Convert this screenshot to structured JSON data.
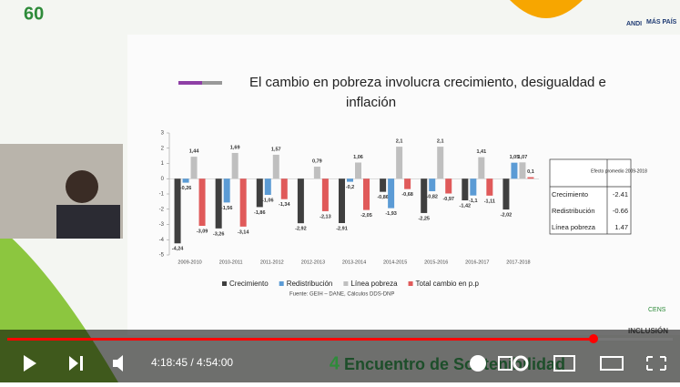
{
  "brand": {
    "anniversary": "60",
    "andi": "ANDI",
    "mas_pais": "MÁS PAÍS",
    "cens": "CENS",
    "inclusion": "INCLUSIÓN"
  },
  "slide": {
    "title": "El cambio en pobreza involucra crecimiento, desigualdad e inflación",
    "source": "Fuente: GEIH – DANE, Cálculos DDS-DNP",
    "chart": {
      "type": "bar",
      "categories": [
        "2009-2010",
        "2010-2011",
        "2011-2012",
        "2012-2013",
        "2013-2014",
        "2014-2015",
        "2015-2016",
        "2016-2017",
        "2017-2018"
      ],
      "series": [
        {
          "name": "Crecimiento",
          "color": "#3f3f3f",
          "values": [
            -4.24,
            -3.26,
            -1.86,
            -2.92,
            -2.91,
            -0.86,
            -2.25,
            -1.42,
            -2.02
          ],
          "value_labels": [
            "-4,24",
            "-3,26",
            "-1,86",
            "-2,92",
            "-2,91",
            "-0,86",
            "-2,25",
            "-1,42",
            "-2,02"
          ]
        },
        {
          "name": "Redistribución",
          "color": "#5b9bd5",
          "values": [
            -0.26,
            -1.56,
            -1.06,
            null,
            -0.2,
            -1.93,
            -0.82,
            -1.1,
            1.05
          ],
          "value_labels": [
            "-0,26",
            "-1,56",
            "-1,06",
            null,
            "-0,2",
            "-1,93",
            "-0,82",
            "-1,1",
            "1,05"
          ]
        },
        {
          "name": "Línea pobreza",
          "color": "#bfbfbf",
          "values": [
            1.44,
            1.69,
            1.57,
            0.79,
            1.06,
            2.1,
            2.1,
            1.41,
            1.07
          ],
          "value_labels": [
            "1,44",
            "1,69",
            "1,57",
            "0,79",
            "1,06",
            "2,1",
            "2,1",
            "1,41",
            "1,07"
          ]
        },
        {
          "name": "Total cambio en p.p",
          "color": "#e05a5a",
          "values": [
            -3.09,
            -3.14,
            -1.34,
            -2.13,
            -2.05,
            -0.68,
            -0.97,
            -1.11,
            0.1
          ],
          "value_labels": [
            "-3,09",
            "-3,14",
            "-1,34",
            "-2,13",
            "-2,05",
            "-0,68",
            "-0,97",
            "-1,11",
            "0,1"
          ]
        }
      ],
      "ylim": [
        -5,
        3
      ],
      "yticks": [
        3,
        2,
        1,
        0,
        -1,
        -2,
        -3,
        -4,
        -5
      ]
    },
    "table": {
      "header": "Efecto promedio 2009-2018",
      "rows": [
        [
          "Crecimiento",
          "-2.41"
        ],
        [
          "Redistribución",
          "-0.66"
        ],
        [
          "Línea pobreza",
          "1.47"
        ]
      ]
    }
  },
  "player": {
    "time": "4:18:45 / 4:54:00",
    "banner_number": "4",
    "banner": "Encuentro de Sostenibilidad"
  }
}
